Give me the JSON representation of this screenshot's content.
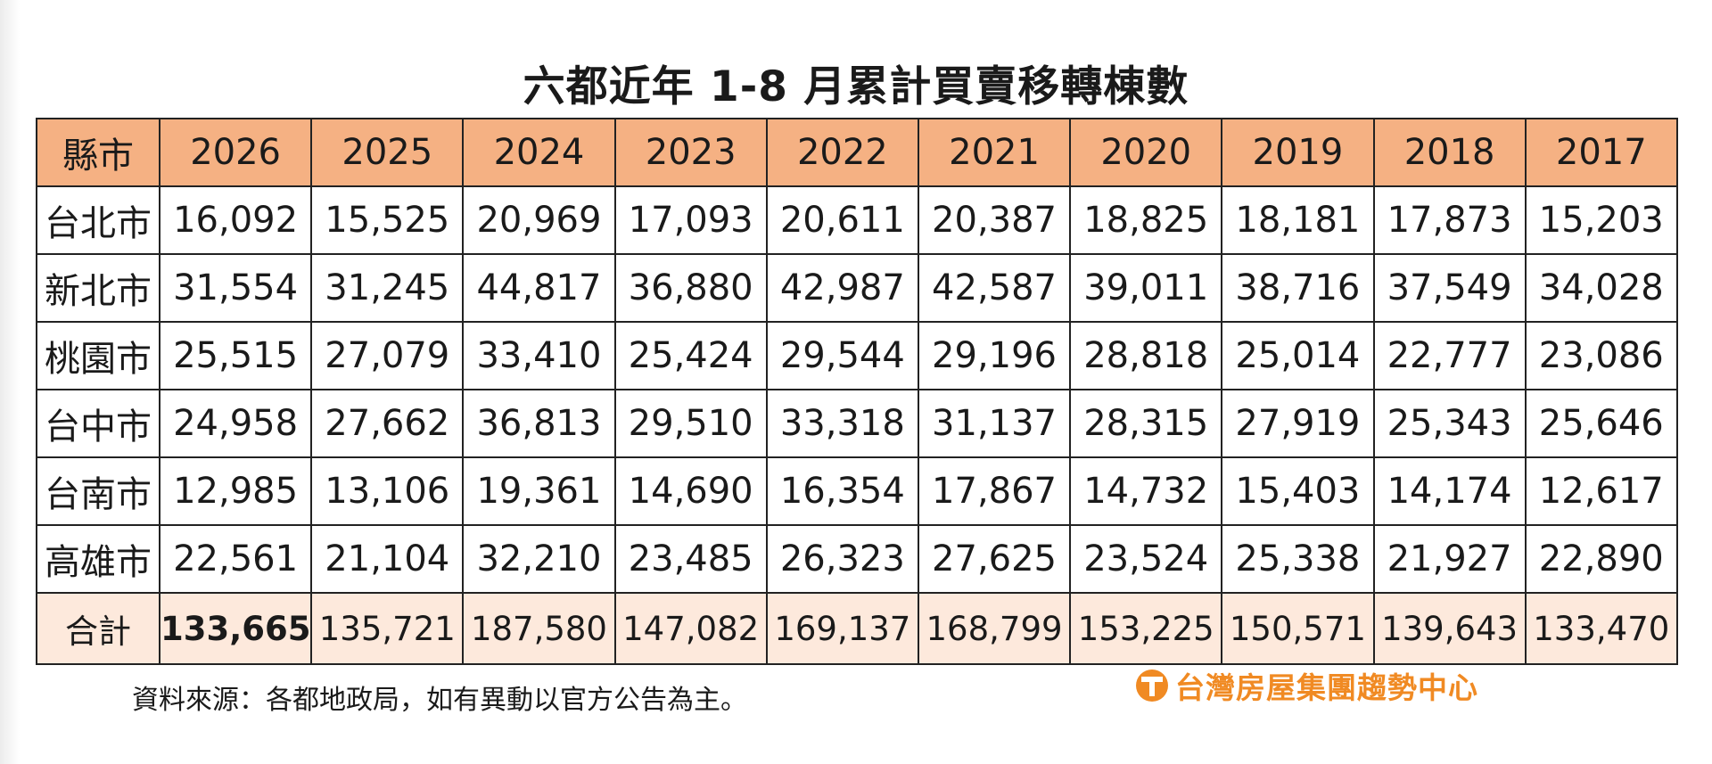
{
  "title": "六都近年 1-8 月累計買賣移轉棟數",
  "source_note": "資料來源：各都地政局，如有異動以官方公告為主。",
  "brand": {
    "text": "台灣房屋集團趨勢中心",
    "logo_icon": "taiwan-realty-logo-icon",
    "color": "#f08a23"
  },
  "colors": {
    "header_bg": "#f5b183",
    "total_bg": "#fde9dc",
    "border": "#222222"
  },
  "chart_data": {
    "type": "table",
    "title": "六都近年 1-8 月累計買賣移轉棟數",
    "columns": [
      "縣市",
      "2026",
      "2025",
      "2024",
      "2023",
      "2022",
      "2021",
      "2020",
      "2019",
      "2018",
      "2017"
    ],
    "rows": [
      {
        "city": "台北市",
        "values": [
          "16,092",
          "15,525",
          "20,969",
          "17,093",
          "20,611",
          "20,387",
          "18,825",
          "18,181",
          "17,873",
          "15,203"
        ]
      },
      {
        "city": "新北市",
        "values": [
          "31,554",
          "31,245",
          "44,817",
          "36,880",
          "42,987",
          "42,587",
          "39,011",
          "38,716",
          "37,549",
          "34,028"
        ]
      },
      {
        "city": "桃園市",
        "values": [
          "25,515",
          "27,079",
          "33,410",
          "25,424",
          "29,544",
          "29,196",
          "28,818",
          "25,014",
          "22,777",
          "23,086"
        ]
      },
      {
        "city": "台中市",
        "values": [
          "24,958",
          "27,662",
          "36,813",
          "29,510",
          "33,318",
          "31,137",
          "28,315",
          "27,919",
          "25,343",
          "25,646"
        ]
      },
      {
        "city": "台南市",
        "values": [
          "12,985",
          "13,106",
          "19,361",
          "14,690",
          "16,354",
          "17,867",
          "14,732",
          "15,403",
          "14,174",
          "12,617"
        ]
      },
      {
        "city": "高雄市",
        "values": [
          "22,561",
          "21,104",
          "32,210",
          "23,485",
          "26,323",
          "27,625",
          "23,524",
          "25,338",
          "21,927",
          "22,890"
        ]
      }
    ],
    "total": {
      "label": "合計",
      "values": [
        "133,665",
        "135,721",
        "187,580",
        "147,082",
        "169,137",
        "168,799",
        "153,225",
        "150,571",
        "139,643",
        "133,470"
      ]
    }
  }
}
